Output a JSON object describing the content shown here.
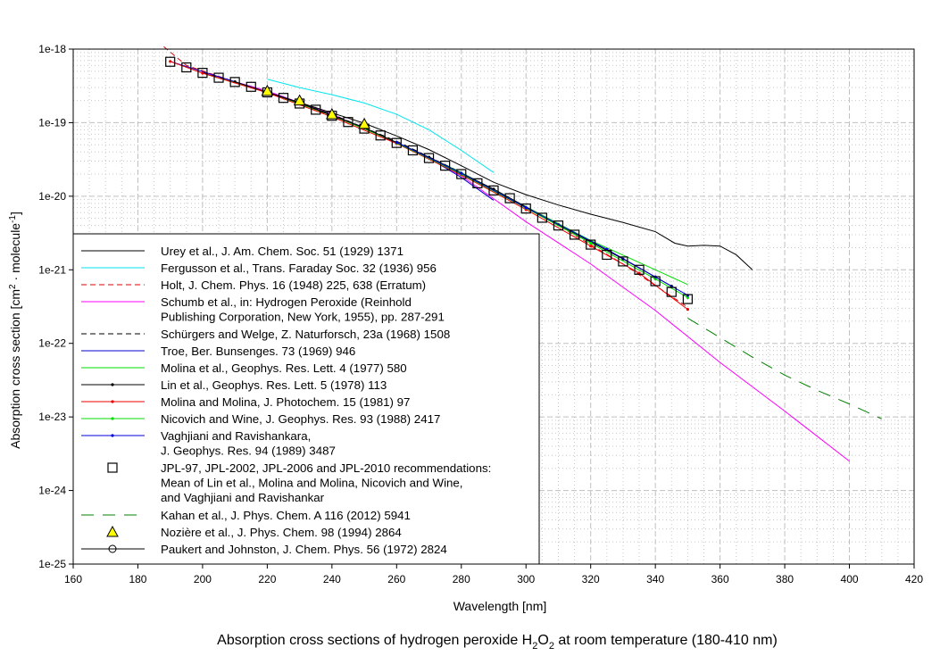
{
  "chart_data": {
    "type": "line",
    "title_parts": [
      "Absorption cross sections of hydrogen peroxide H",
      "2",
      "O",
      "2",
      " at room temperature (180-410 nm)"
    ],
    "xlabel": "Wavelength [nm]",
    "ylabel_parts": [
      "Absorption cross section [cm",
      "2",
      " · molecule",
      "-1",
      "]"
    ],
    "xlim": [
      160,
      420
    ],
    "ylim": [
      1e-25,
      1e-18
    ],
    "yscale": "log",
    "grid": true,
    "legend_placement": "lower-left",
    "xticks": [
      "160",
      "180",
      "200",
      "220",
      "240",
      "260",
      "280",
      "300",
      "320",
      "340",
      "360",
      "380",
      "400",
      "420"
    ],
    "yticks": [
      "1e-18",
      "1e-19",
      "1e-20",
      "1e-21",
      "1e-22",
      "1e-23",
      "1e-24",
      "1e-25"
    ],
    "series": [
      {
        "name": "Urey et al., J. Am. Chem. Soc. 51 (1929) 1371",
        "color": "#000000",
        "style": "solid",
        "marker": "none",
        "points": [
          [
            220,
            2.6e-19
          ],
          [
            235,
            1.6e-19
          ],
          [
            250,
            9.8e-20
          ],
          [
            260,
            6.6e-20
          ],
          [
            270,
            4.3e-20
          ],
          [
            280,
            2.6e-20
          ],
          [
            290,
            1.55e-20
          ],
          [
            300,
            1.05e-20
          ],
          [
            310,
            7.6e-21
          ],
          [
            320,
            5.7e-21
          ],
          [
            330,
            4.4e-21
          ],
          [
            340,
            3.3e-21
          ],
          [
            346,
            2.3e-21
          ],
          [
            350,
            2.1e-21
          ],
          [
            355,
            2.15e-21
          ],
          [
            360,
            2.1e-21
          ],
          [
            365,
            1.6e-21
          ],
          [
            370,
            1e-21
          ]
        ]
      },
      {
        "name": "Fergusson et al., Trans. Faraday Soc. 32 (1936) 956",
        "color": "#00e5ee",
        "style": "solid",
        "marker": "none",
        "points": [
          [
            220,
            3.9e-19
          ],
          [
            230,
            3e-19
          ],
          [
            240,
            2.4e-19
          ],
          [
            250,
            1.85e-19
          ],
          [
            260,
            1.3e-19
          ],
          [
            270,
            8e-20
          ],
          [
            280,
            4.2e-20
          ],
          [
            290,
            2.1e-20
          ]
        ]
      },
      {
        "name": "Holt, J. Chem. Phys. 16 (1948) 225, 638 (Erratum)",
        "color": "#e00000",
        "style": "dashed",
        "marker": "none",
        "points": [
          [
            188,
            1.08e-18
          ],
          [
            195,
            6e-19
          ],
          [
            210,
            3.6e-19
          ],
          [
            230,
            1.8e-19
          ],
          [
            250,
            8.4e-20
          ],
          [
            270,
            3.3e-20
          ],
          [
            290,
            1.2e-20
          ],
          [
            310,
            4e-21
          ],
          [
            330,
            1.2e-21
          ],
          [
            350,
            3.1e-22
          ]
        ]
      },
      {
        "name": "Schumb et al., in: Hydrogen Peroxide (Reinhold Publishing Corporation, New York, 1955), pp. 287-291",
        "color": "#ff00ff",
        "style": "solid",
        "marker": "none",
        "points": [
          [
            200,
            4.8e-19
          ],
          [
            220,
            2.7e-19
          ],
          [
            240,
            1.3e-19
          ],
          [
            260,
            5.4e-20
          ],
          [
            280,
            1.9e-20
          ],
          [
            300,
            4.5e-21
          ],
          [
            320,
            1.2e-21
          ],
          [
            340,
            2.8e-22
          ],
          [
            360,
            5.5e-23
          ],
          [
            380,
            1.2e-23
          ],
          [
            400,
            2.5e-24
          ]
        ]
      },
      {
        "name": "Schürgers and Welge, Z. Naturforsch, 23a (1968) 1508",
        "color": "#000000",
        "style": "dashed",
        "marker": "none",
        "points": [
          [
            200,
            4.8e-19
          ],
          [
            220,
            2.6e-19
          ],
          [
            240,
            1.3e-19
          ],
          [
            260,
            5.6e-20
          ],
          [
            280,
            2.1e-20
          ]
        ]
      },
      {
        "name": "Troe, Ber. Bunsenges. 73 (1969) 946",
        "color": "#0000cc",
        "style": "solid",
        "marker": "none",
        "points": [
          [
            190,
            6.8e-19
          ],
          [
            210,
            3.6e-19
          ],
          [
            230,
            1.85e-19
          ],
          [
            250,
            8.5e-20
          ],
          [
            270,
            3.3e-20
          ],
          [
            280,
            1.8e-20
          ],
          [
            290,
            8.8e-21
          ]
        ]
      },
      {
        "name": "Molina et al., Geophys. Res. Lett. 4 (1977) 580",
        "color": "#00dd00",
        "style": "solid",
        "marker": "none",
        "points": [
          [
            200,
            4.7e-19
          ],
          [
            220,
            2.6e-19
          ],
          [
            240,
            1.25e-19
          ],
          [
            260,
            5.4e-20
          ],
          [
            280,
            2.1e-20
          ],
          [
            300,
            7.2e-21
          ],
          [
            320,
            2.5e-21
          ],
          [
            340,
            1e-21
          ],
          [
            350,
            6.3e-22
          ]
        ]
      },
      {
        "name": "Lin et al., Geophys. Res. Lett. 5 (1978) 113",
        "color": "#000000",
        "style": "solid",
        "marker": "dot",
        "points": [
          [
            210,
            3.6e-19
          ],
          [
            230,
            1.85e-19
          ],
          [
            250,
            8.5e-20
          ],
          [
            270,
            3.4e-20
          ],
          [
            290,
            1.25e-20
          ],
          [
            310,
            4.1e-21
          ],
          [
            330,
            1.4e-21
          ],
          [
            345,
            6e-22
          ]
        ]
      },
      {
        "name": "Molina and Molina, J. Photochem. 15 (1981) 97",
        "color": "#ee0000",
        "style": "solid",
        "marker": "dot",
        "points": [
          [
            190,
            6.8e-19
          ],
          [
            200,
            4.7e-19
          ],
          [
            220,
            2.55e-19
          ],
          [
            240,
            1.2e-19
          ],
          [
            260,
            5.2e-20
          ],
          [
            280,
            1.95e-20
          ],
          [
            300,
            6.6e-21
          ],
          [
            320,
            2.1e-21
          ],
          [
            335,
            9e-22
          ],
          [
            350,
            2.9e-22
          ]
        ]
      },
      {
        "name": "Nicovich and Wine, J. Geophys. Res. 93 (1988) 2417",
        "color": "#00dd00",
        "style": "solid",
        "marker": "dot",
        "points": [
          [
            260,
            5.3e-20
          ],
          [
            280,
            2e-20
          ],
          [
            300,
            6.9e-21
          ],
          [
            320,
            2.3e-21
          ],
          [
            340,
            7.5e-22
          ],
          [
            350,
            4.2e-22
          ]
        ]
      },
      {
        "name": "Vaghjiani and Ravishankara, J. Geophys. Res. 94 (1989) 3487",
        "lines": [
          "Vaghjiani and Ravishankara,",
          "J. Geophys. Res. 94 (1989) 3487"
        ],
        "color": "#0000dd",
        "style": "solid",
        "marker": "dot",
        "points": [
          [
            260,
            5.4e-20
          ],
          [
            280,
            2.05e-20
          ],
          [
            300,
            7e-21
          ],
          [
            325,
            1.9e-21
          ],
          [
            340,
            8e-22
          ],
          [
            350,
            4.5e-22
          ]
        ]
      },
      {
        "name": "JPL-97, JPL-2002, JPL-2006 and JPL-2010 recommendations: Mean of Lin et al., Molina and Molina, Nicovich and Wine, and Vaghjiani and Ravishankar",
        "lines": [
          "JPL-97, JPL-2002, JPL-2006 and JPL-2010 recommendations:",
          "Mean of Lin et al., Molina and Molina, Nicovich and Wine,",
          "and Vaghjiani and Ravishankar"
        ],
        "color": "#000000",
        "style": "none",
        "marker": "square",
        "points": [
          [
            190,
            6.72e-19
          ],
          [
            195,
            5.64e-19
          ],
          [
            200,
            4.75e-19
          ],
          [
            205,
            4.08e-19
          ],
          [
            210,
            3.57e-19
          ],
          [
            215,
            3.07e-19
          ],
          [
            220,
            2.58e-19
          ],
          [
            225,
            2.17e-19
          ],
          [
            230,
            1.82e-19
          ],
          [
            235,
            1.5e-19
          ],
          [
            240,
            1.24e-19
          ],
          [
            245,
            1.02e-19
          ],
          [
            250,
            8.3e-20
          ],
          [
            255,
            6.7e-20
          ],
          [
            260,
            5.3e-20
          ],
          [
            265,
            4.2e-20
          ],
          [
            270,
            3.3e-20
          ],
          [
            275,
            2.6e-20
          ],
          [
            280,
            2e-20
          ],
          [
            285,
            1.5e-20
          ],
          [
            290,
            1.2e-20
          ],
          [
            295,
            9.4e-21
          ],
          [
            300,
            6.8e-21
          ],
          [
            305,
            5.1e-21
          ],
          [
            310,
            4e-21
          ],
          [
            315,
            3e-21
          ],
          [
            320,
            2.2e-21
          ],
          [
            325,
            1.6e-21
          ],
          [
            330,
            1.3e-21
          ],
          [
            335,
            1e-21
          ],
          [
            340,
            7e-22
          ],
          [
            345,
            5e-22
          ],
          [
            350,
            4e-22
          ]
        ]
      },
      {
        "name": "Kahan et al., J. Phys. Chem. A 116 (2012) 5941",
        "color": "#008000",
        "style": "longdash",
        "marker": "none",
        "points": [
          [
            350,
            2.2e-22
          ],
          [
            360,
            1.2e-22
          ],
          [
            370,
            6.5e-23
          ],
          [
            380,
            3.7e-23
          ],
          [
            390,
            2.3e-23
          ],
          [
            400,
            1.5e-23
          ],
          [
            410,
            9.4e-24
          ]
        ]
      },
      {
        "name": "Nozière et al., J. Phys. Chem. 98 (1994) 2864",
        "color": "#ffff00",
        "style": "none",
        "marker": "triangle",
        "points": [
          [
            220,
            2.7e-19
          ],
          [
            230,
            2e-19
          ],
          [
            240,
            1.3e-19
          ],
          [
            250,
            9.6e-20
          ]
        ]
      },
      {
        "name": "Paukert and Johnston, J. Chem. Phys. 56 (1972) 2824",
        "color": "#000000",
        "style": "solid",
        "marker": "circle",
        "points": []
      }
    ]
  }
}
